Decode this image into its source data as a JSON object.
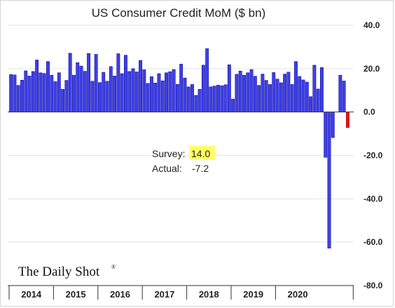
{
  "chart_data": {
    "type": "bar",
    "title": "US Consumer Credit MoM ($ bn)",
    "xlabel": "",
    "ylabel": "",
    "ylim": [
      -80,
      40
    ],
    "yticks": [
      40,
      20,
      0,
      -20,
      -40,
      -60,
      -80
    ],
    "ytick_labels": [
      "40.0",
      "20.0",
      "0.0",
      "-20.0",
      "-40.0",
      "-60.0",
      "-80.0"
    ],
    "year_labels": [
      "2014",
      "2015",
      "2016",
      "2017",
      "2018",
      "2019",
      "2020"
    ],
    "x_start": "2014-01",
    "colors": {
      "positive": "#3f3fe8",
      "negative_highlight": "#ee1111",
      "edge": "#00008a"
    },
    "values": [
      17.3,
      17.1,
      12.3,
      14.7,
      19.0,
      16.6,
      18.7,
      24.0,
      18.1,
      17.8,
      23.3,
      17.0,
      14.0,
      18.1,
      10.5,
      14.6,
      27.1,
      17.0,
      22.8,
      21.2,
      18.8,
      27.0,
      14.2,
      26.6,
      13.6,
      18.3,
      14.2,
      21.0,
      16.6,
      26.9,
      17.7,
      26.2,
      18.7,
      20.0,
      18.5,
      23.8,
      19.5,
      13.2,
      16.3,
      13.4,
      17.7,
      14.4,
      18.1,
      18.6,
      19.6,
      12.8,
      22.1,
      15.7,
      11.6,
      12.7,
      7.7,
      10.5,
      21.6,
      29.2,
      11.6,
      12.0,
      12.4,
      12.1,
      12.6,
      21.8,
      6.0,
      17.4,
      18.9,
      17.0,
      18.1,
      19.6,
      16.5,
      12.3,
      17.5,
      14.6,
      12.7,
      18.2,
      15.2,
      13.5,
      17.5,
      18.4,
      12.7,
      23.3,
      16.4,
      14.8,
      13.8,
      7.1,
      21.6,
      10.6,
      20.5,
      -20.9,
      -62.8,
      -11.8,
      0,
      17.0,
      14.3,
      -7.2
    ],
    "highlight_last": true,
    "annotations": [
      {
        "label": "Survey:",
        "value": "14.0",
        "highlight_color": "#ffff66"
      },
      {
        "label": "Actual:",
        "value": "-7.2"
      }
    ]
  },
  "branding": {
    "text": "The Daily Shot",
    "mark": "®"
  }
}
